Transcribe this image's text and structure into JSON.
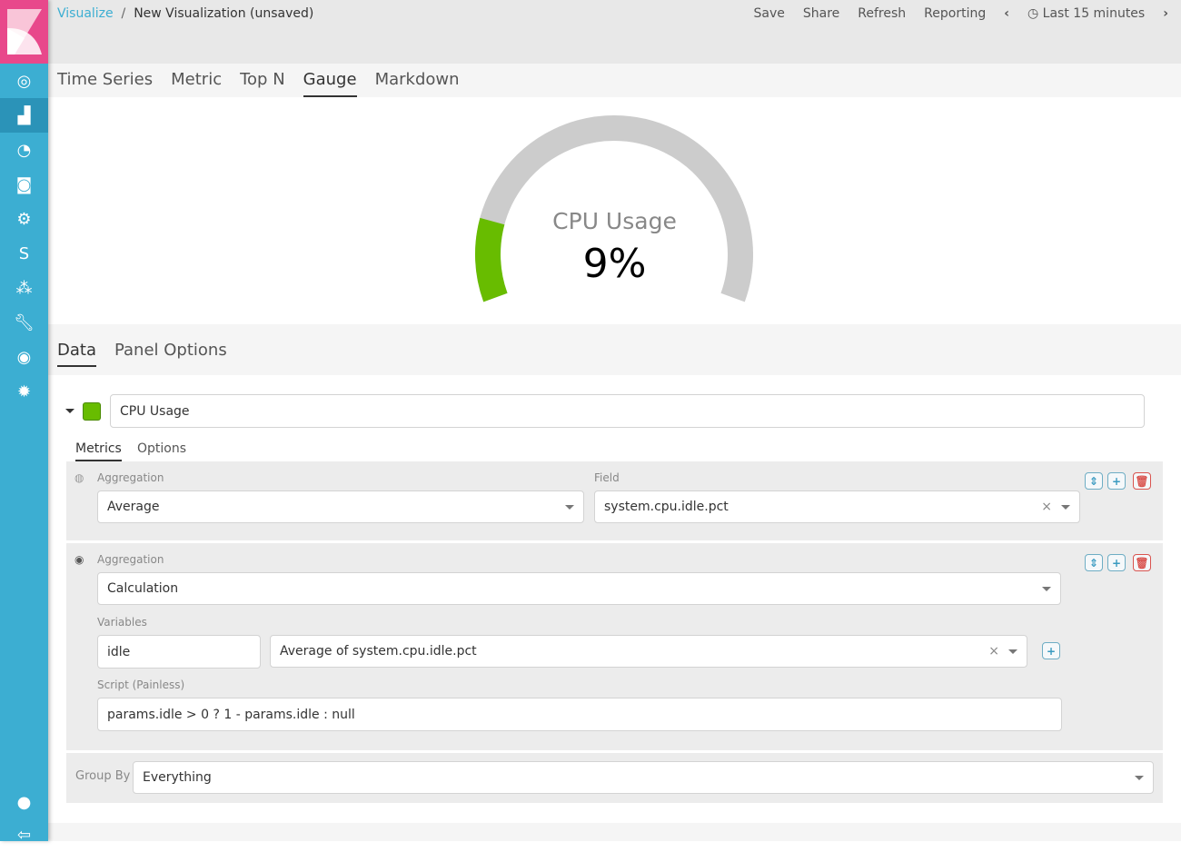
{
  "breadcrumb": {
    "root": "Visualize",
    "current": "New Visualization (unsaved)"
  },
  "top_menu": {
    "save": "Save",
    "share": "Share",
    "refresh": "Refresh",
    "reporting": "Reporting",
    "time": "Last 15 minutes"
  },
  "sidebar": {
    "items": [
      "discover-icon",
      "visualize-icon",
      "dashboard-icon",
      "timelion-icon",
      "machine-learning-icon",
      "apm-icon",
      "graph-icon",
      "dev-tools-icon",
      "monitoring-icon",
      "management-icon"
    ],
    "bottom": [
      "user-icon",
      "logout-icon"
    ]
  },
  "viz_tabs": [
    "Time Series",
    "Metric",
    "Top N",
    "Gauge",
    "Markdown"
  ],
  "active_viz_tab": "Gauge",
  "gauge": {
    "label": "CPU Usage",
    "value_label": "9%",
    "fill_fraction": 0.16,
    "fill_color": "#68bc00",
    "track_color": "#cccccc"
  },
  "data_tabs": [
    "Data",
    "Panel Options"
  ],
  "series": {
    "color": "#68bc00",
    "label": "CPU Usage",
    "tabs": [
      "Metrics",
      "Options"
    ],
    "metric1": {
      "aggregation_label": "Aggregation",
      "aggregation": "Average",
      "field_label": "Field",
      "field": "system.cpu.idle.pct"
    },
    "metric2": {
      "aggregation_label": "Aggregation",
      "aggregation": "Calculation",
      "variables_label": "Variables",
      "var_name": "idle",
      "var_metric": "Average of system.cpu.idle.pct",
      "script_label": "Script (Painless)",
      "script": "params.idle > 0 ? 1 - params.idle : null"
    },
    "group_by_label": "Group By",
    "group_by": "Everything"
  }
}
